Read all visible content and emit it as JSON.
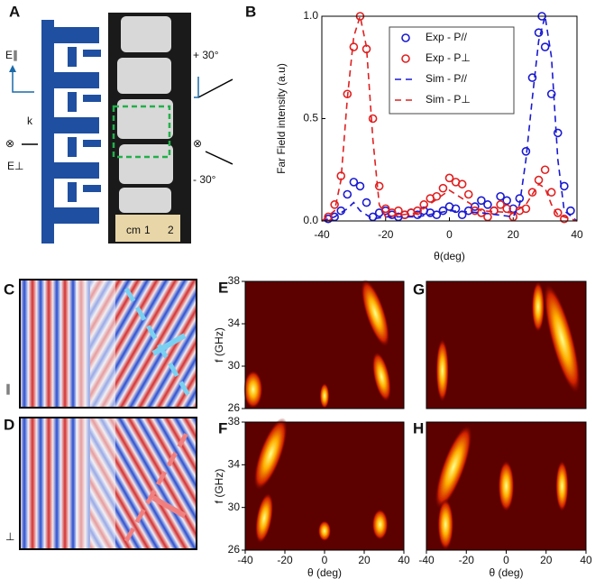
{
  "panel_a": {
    "label": "A",
    "e_par": "E∥",
    "k": "k",
    "cross_top": "⊗",
    "e_perp": "E⊥",
    "plus": "+ 30°",
    "cross_bottom": "⊗",
    "minus": "- 30°",
    "ruler": [
      "cm",
      "1",
      "2"
    ]
  },
  "panel_c": {
    "label": "C",
    "pol": "∥"
  },
  "panel_d": {
    "label": "D",
    "pol": "⊥"
  },
  "chart_data": [
    {
      "type": "scatter",
      "panel": "B",
      "xlabel": "θ(deg)",
      "ylabel": "Far Field intensity (a.u)",
      "xlim": [
        -40,
        40
      ],
      "xticks": [
        -40,
        -20,
        0,
        20,
        40
      ],
      "ylim": [
        0,
        1
      ],
      "yticks": [
        {
          "value": 0,
          "label": "0.0"
        },
        {
          "value": 0.5,
          "label": "0.5"
        },
        {
          "value": 1,
          "label": "1.0"
        }
      ],
      "legend": "upper center",
      "series": [
        {
          "name": "Exp - P//",
          "color": "#1a1ad0",
          "style": "markers",
          "x": [
            -38,
            -36,
            -34,
            -32,
            -30,
            -28,
            -26,
            -24,
            -22,
            -20,
            -18,
            -16,
            -14,
            -12,
            -10,
            -8,
            -6,
            -4,
            -2,
            0,
            2,
            4,
            6,
            8,
            10,
            12,
            14,
            16,
            18,
            20,
            22,
            24,
            26,
            28,
            29,
            30,
            32,
            34,
            36,
            38
          ],
          "values": [
            0.01,
            0.02,
            0.05,
            0.13,
            0.19,
            0.17,
            0.09,
            0.02,
            0.04,
            0.05,
            0.03,
            0.02,
            0.03,
            0.04,
            0.03,
            0.05,
            0.04,
            0.03,
            0.05,
            0.07,
            0.06,
            0.03,
            0.05,
            0.07,
            0.1,
            0.08,
            0.05,
            0.12,
            0.1,
            0.06,
            0.11,
            0.34,
            0.7,
            0.92,
            1.0,
            0.85,
            0.62,
            0.43,
            0.17,
            0.05
          ]
        },
        {
          "name": "Exp - P⊥",
          "color": "#e02020",
          "style": "markers",
          "x": [
            -38,
            -36,
            -34,
            -32,
            -30,
            -28,
            -26,
            -24,
            -22,
            -20,
            -18,
            -16,
            -14,
            -12,
            -10,
            -8,
            -6,
            -4,
            -2,
            0,
            2,
            4,
            6,
            8,
            10,
            12,
            14,
            16,
            18,
            20,
            22,
            24,
            26,
            28,
            30,
            32,
            34,
            36
          ],
          "values": [
            0.02,
            0.08,
            0.22,
            0.62,
            0.85,
            1.0,
            0.84,
            0.5,
            0.17,
            0.06,
            0.04,
            0.05,
            0.03,
            0.04,
            0.05,
            0.08,
            0.11,
            0.12,
            0.16,
            0.21,
            0.19,
            0.18,
            0.13,
            0.05,
            0.04,
            0.02,
            0.05,
            0.08,
            0.06,
            0.02,
            0.05,
            0.06,
            0.14,
            0.2,
            0.25,
            0.14,
            0.04,
            0.01
          ]
        },
        {
          "name": "Sim - P//",
          "color": "#1a1ad0",
          "style": "dashed",
          "x": [
            -40,
            -36,
            -32,
            -30,
            -28,
            -24,
            -20,
            -10,
            0,
            10,
            20,
            22,
            24,
            26,
            28,
            30,
            32,
            34,
            36,
            40
          ],
          "values": [
            0,
            0.02,
            0.06,
            0.09,
            0.05,
            0.01,
            0.02,
            0.02,
            0.05,
            0.04,
            0.02,
            0.08,
            0.3,
            0.6,
            0.88,
            1.0,
            0.8,
            0.3,
            0.05,
            0
          ]
        },
        {
          "name": "Sim - P⊥",
          "color": "#e02020",
          "style": "dashed",
          "x": [
            -40,
            -36,
            -34,
            -32,
            -30,
            -28,
            -26,
            -24,
            -22,
            -20,
            -10,
            0,
            10,
            20,
            24,
            28,
            30,
            32,
            34,
            40
          ],
          "values": [
            0,
            0.05,
            0.2,
            0.6,
            0.9,
            1.0,
            0.85,
            0.4,
            0.08,
            0.02,
            0.04,
            0.15,
            0.05,
            0.04,
            0.08,
            0.18,
            0.16,
            0.08,
            0.03,
            0
          ]
        }
      ]
    },
    {
      "type": "heatmap",
      "panel": "E",
      "xlim": [
        -40,
        40
      ],
      "ylim": [
        26,
        38
      ],
      "yticks": [
        26,
        30,
        34,
        38
      ],
      "ylabel": "f (GHz)"
    },
    {
      "type": "heatmap",
      "panel": "F",
      "xlim": [
        -40,
        40
      ],
      "ylim": [
        26,
        38
      ],
      "xticks": [
        -40,
        -20,
        0,
        20,
        40
      ],
      "yticks": [
        26,
        30,
        34,
        38
      ],
      "xlabel": "θ (deg)",
      "ylabel": "f (GHz)"
    },
    {
      "type": "heatmap",
      "panel": "G",
      "xlim": [
        -40,
        40
      ],
      "ylim": [
        26,
        38
      ]
    },
    {
      "type": "heatmap",
      "panel": "H",
      "xlim": [
        -40,
        40
      ],
      "ylim": [
        26,
        38
      ],
      "xticks": [
        -40,
        -20,
        0,
        20,
        40
      ],
      "xlabel": "θ (deg)"
    }
  ]
}
